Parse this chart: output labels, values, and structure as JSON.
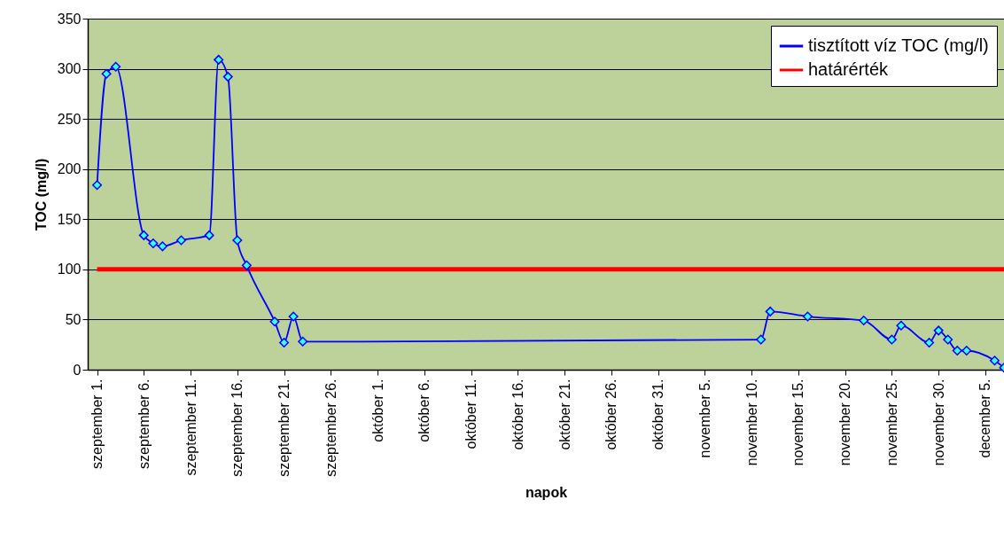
{
  "chart_data": {
    "type": "line",
    "xlabel": "napok",
    "ylabel": "TOC (mg/l)",
    "xlim": [
      "--08-31",
      "--12-07"
    ],
    "xticks": [
      {
        "value": "--09-01",
        "label": "szeptember 1."
      },
      {
        "value": "--09-06",
        "label": "szeptember 6."
      },
      {
        "value": "--09-11",
        "label": "szeptember 11."
      },
      {
        "value": "--09-16",
        "label": "szeptember 16."
      },
      {
        "value": "--09-21",
        "label": "szeptember 21."
      },
      {
        "value": "--09-26",
        "label": "szeptember 26."
      },
      {
        "value": "--10-01",
        "label": "október 1."
      },
      {
        "value": "--10-06",
        "label": "október 6."
      },
      {
        "value": "--10-11",
        "label": "október 11."
      },
      {
        "value": "--10-16",
        "label": "október 16."
      },
      {
        "value": "--10-21",
        "label": "október 21."
      },
      {
        "value": "--10-26",
        "label": "október 26."
      },
      {
        "value": "--10-31",
        "label": "október 31."
      },
      {
        "value": "--11-05",
        "label": "november 5."
      },
      {
        "value": "--11-10",
        "label": "november 10."
      },
      {
        "value": "--11-15",
        "label": "november 15."
      },
      {
        "value": "--11-20",
        "label": "november 20."
      },
      {
        "value": "--11-25",
        "label": "november 25."
      },
      {
        "value": "--11-30",
        "label": "november 30."
      },
      {
        "value": "--12-05",
        "label": "december 5."
      }
    ],
    "ylim": [
      0,
      350
    ],
    "yticks": [
      0,
      50,
      100,
      150,
      200,
      250,
      300,
      350
    ],
    "grid": "y",
    "legend": "top right",
    "series": [
      {
        "name": "tisztított víz TOC (mg/l)",
        "color": "#0000ff",
        "marker": "diamond",
        "x": [
          "--09-01",
          "--09-02",
          "--09-03",
          "--09-06",
          "--09-07",
          "--09-08",
          "--09-10",
          "--09-13",
          "--09-14",
          "--09-15",
          "--09-16",
          "--09-17",
          "--09-20",
          "--09-21",
          "--09-22",
          "--09-23",
          "--11-11",
          "--11-12",
          "--11-16",
          "--11-22",
          "--11-25",
          "--11-26",
          "--11-29",
          "--11-30",
          "--12-01",
          "--12-02",
          "--12-03",
          "--12-06",
          "--12-07"
        ],
        "values": [
          184,
          295,
          302,
          134,
          126,
          123,
          129,
          134,
          309,
          292,
          129,
          104,
          48,
          27,
          53,
          28,
          30,
          58,
          53,
          49,
          30,
          44,
          27,
          39,
          30,
          19,
          19,
          9,
          2
        ]
      },
      {
        "name": "határérték",
        "color": "#ff0000",
        "marker": "none",
        "x": [
          "--09-01",
          "--12-07"
        ],
        "values": [
          100,
          100
        ]
      }
    ]
  }
}
